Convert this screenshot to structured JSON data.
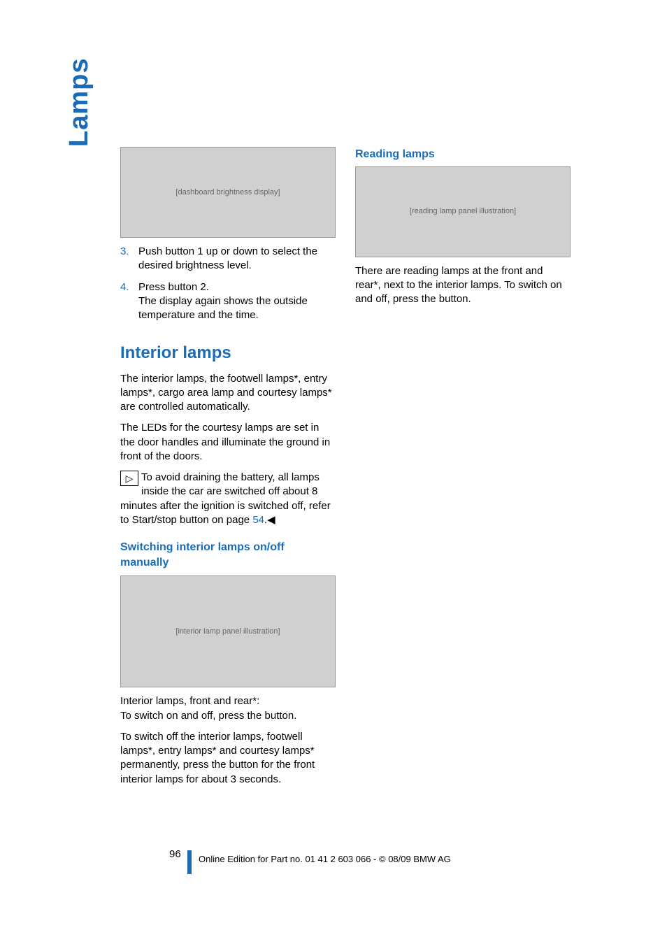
{
  "sideTab": "Lamps",
  "left": {
    "fig1_alt": "[dashboard brightness display]",
    "step3_num": "3.",
    "step3_text": "Push button 1 up or down to select the desired brightness level.",
    "step4_num": "4.",
    "step4_text": "Press button 2.\nThe display again shows the outside temperature and the time.",
    "h2": "Interior lamps",
    "p1": "The interior lamps, the footwell lamps*, entry lamps*,  cargo area lamp and courtesy lamps* are controlled automatically.",
    "p2": "The LEDs for the courtesy lamps are set in the door handles and illuminate the ground in front of the doors.",
    "note_glyph": "▷",
    "note_text_a": "To avoid draining the battery, all lamps inside the car are switched off about 8 minutes after the ignition is switched off, refer to Start/stop button on page ",
    "note_xref": "54",
    "note_text_b": ".◀",
    "h3a": "Switching interior lamps on/off manually",
    "fig2_alt": "[interior lamp panel illustration]",
    "p3": "Interior lamps, front and rear*:\nTo switch on and off, press the button.",
    "p4": "To switch off the interior lamps, footwell lamps*, entry lamps* and courtesy lamps* permanently, press the button for the front interior lamps for about 3 seconds."
  },
  "right": {
    "h3": "Reading lamps",
    "fig3_alt": "[reading lamp panel illustration]",
    "p1": "There are reading lamps at the front and rear*, next to the interior lamps. To switch on and off, press the button."
  },
  "footer": {
    "page": "96",
    "line": "Online Edition for Part no. 01 41 2 603 066 - © 08/09 BMW AG"
  }
}
